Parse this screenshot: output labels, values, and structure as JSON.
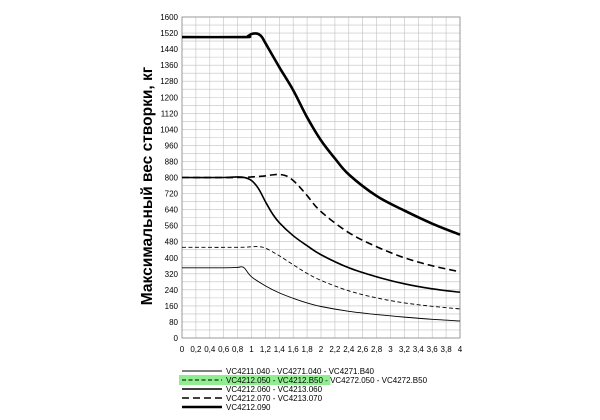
{
  "chart_data": {
    "type": "line",
    "ylabel": "Максимальный вес створки, кг",
    "xlabel": "",
    "xlim": [
      0,
      4
    ],
    "ylim": [
      0,
      1600
    ],
    "xticks": [
      "0",
      "0,2",
      "0,4",
      "0,6",
      "0,8",
      "1",
      "1,2",
      "1,4",
      "1,6",
      "1,8",
      "2",
      "2,2",
      "2,4",
      "2,6",
      "2,8",
      "3",
      "3,2",
      "3,4",
      "3,6",
      "3,8",
      "4"
    ],
    "yticks": [
      "0",
      "40",
      "80",
      "120",
      "160",
      "200",
      "240",
      "280",
      "320",
      "360",
      "400",
      "440",
      "480",
      "520",
      "560",
      "600",
      "640",
      "680",
      "720",
      "760",
      "800",
      "840",
      "880",
      "920",
      "960",
      "1000",
      "1040",
      "1080",
      "1120",
      "1160",
      "1200",
      "1240",
      "1280",
      "1320",
      "1360",
      "1400",
      "1440",
      "1480",
      "1520",
      "1560",
      "1600"
    ],
    "yticks_shown": [
      "0",
      "80",
      "160",
      "240",
      "320",
      "400",
      "480",
      "560",
      "640",
      "720",
      "800",
      "880",
      "960",
      "1040",
      "1120",
      "1200",
      "1280",
      "1360",
      "1440",
      "1520",
      "1600"
    ],
    "grid": true,
    "legend_position": "bottom",
    "series": [
      {
        "name": "VC4211.040 - VC4271.040 - VC4271.B40",
        "style": "thin-solid",
        "x": [
          0,
          0.6,
          0.8,
          0.85,
          0.9,
          1.0,
          1.2,
          1.4,
          1.6,
          1.8,
          2.0,
          2.4,
          2.8,
          3.2,
          3.6,
          4.0
        ],
        "y": [
          350,
          350,
          352,
          355,
          348,
          305,
          260,
          225,
          198,
          175,
          157,
          133,
          117,
          104,
          93,
          85
        ]
      },
      {
        "name": "VC4212.050 - VC4212.B50 - VC4272.050 - VC4272.B50",
        "style": "thin-dashed",
        "x": [
          0,
          0.8,
          1.0,
          1.1,
          1.2,
          1.4,
          1.6,
          1.8,
          2.0,
          2.4,
          2.8,
          3.2,
          3.6,
          4.0
        ],
        "y": [
          452,
          452,
          455,
          455,
          448,
          410,
          365,
          322,
          287,
          235,
          200,
          175,
          158,
          145
        ]
      },
      {
        "name": "VC4212.060 - VC4213.060",
        "style": "medium-solid",
        "x": [
          0,
          0.6,
          0.8,
          0.9,
          1.0,
          1.1,
          1.2,
          1.3,
          1.4,
          1.6,
          1.8,
          2.0,
          2.4,
          2.8,
          3.2,
          3.6,
          4.0
        ],
        "y": [
          800,
          800,
          803,
          800,
          785,
          745,
          680,
          620,
          575,
          510,
          460,
          415,
          350,
          305,
          270,
          245,
          228
        ]
      },
      {
        "name": "VC4212.070 - VC4213.070",
        "style": "medium-dashed",
        "x": [
          0,
          0.8,
          1.0,
          1.2,
          1.3,
          1.4,
          1.5,
          1.6,
          1.7,
          1.8,
          2.0,
          2.4,
          2.8,
          3.2,
          3.6,
          4.0
        ],
        "y": [
          800,
          800,
          803,
          808,
          813,
          815,
          808,
          785,
          750,
          710,
          630,
          525,
          455,
          400,
          360,
          330
        ]
      },
      {
        "name": "VC4212.090",
        "style": "thick-solid",
        "x": [
          0,
          0.9,
          0.95,
          1.0,
          1.05,
          1.1,
          1.15,
          1.2,
          1.4,
          1.6,
          1.8,
          2.0,
          2.2,
          2.4,
          2.8,
          3.2,
          3.6,
          4.0
        ],
        "y": [
          1500,
          1500,
          1505,
          1515,
          1518,
          1515,
          1500,
          1470,
          1350,
          1235,
          1100,
          985,
          895,
          815,
          708,
          635,
          570,
          515
        ]
      }
    ],
    "colors": {
      "line": "#000000",
      "grid": "#c0c0c0",
      "legend_highlight": "#90ee90"
    },
    "highlighted_legend_text": "VC4212.050 - VC4212.B50"
  }
}
